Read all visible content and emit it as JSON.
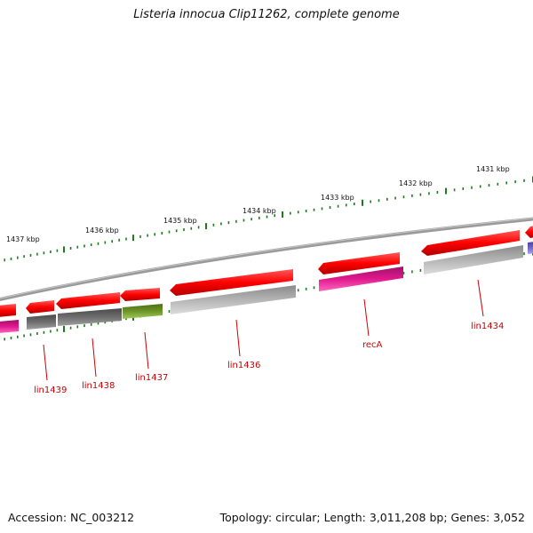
{
  "title": "Listeria innocua Clip11262, complete genome",
  "footer": {
    "accession": "Accession: NC_003212",
    "stats": "Topology: circular; Length: 3,011,208 bp; Genes: 3,052"
  },
  "colors": {
    "backbone": "#8c8c8c",
    "tick": "#1e7a1e",
    "forward_gene": "#e60000",
    "gene_label": "#cc0000",
    "magenta": "#e0198c",
    "light_gray": "#b4b4b4",
    "dark_gray": "#6e6e6e",
    "olive": "#6e9628",
    "purple": "#7068c8"
  },
  "kbp_labels": [
    "1437 kbp",
    "1436 kbp",
    "1435 kbp",
    "1434 kbp",
    "1433 kbp",
    "1432 kbp",
    "1431 kbp"
  ],
  "gene_labels": [
    "lin1439",
    "lin1438",
    "lin1437",
    "lin1436",
    "recA",
    "lin1434"
  ]
}
